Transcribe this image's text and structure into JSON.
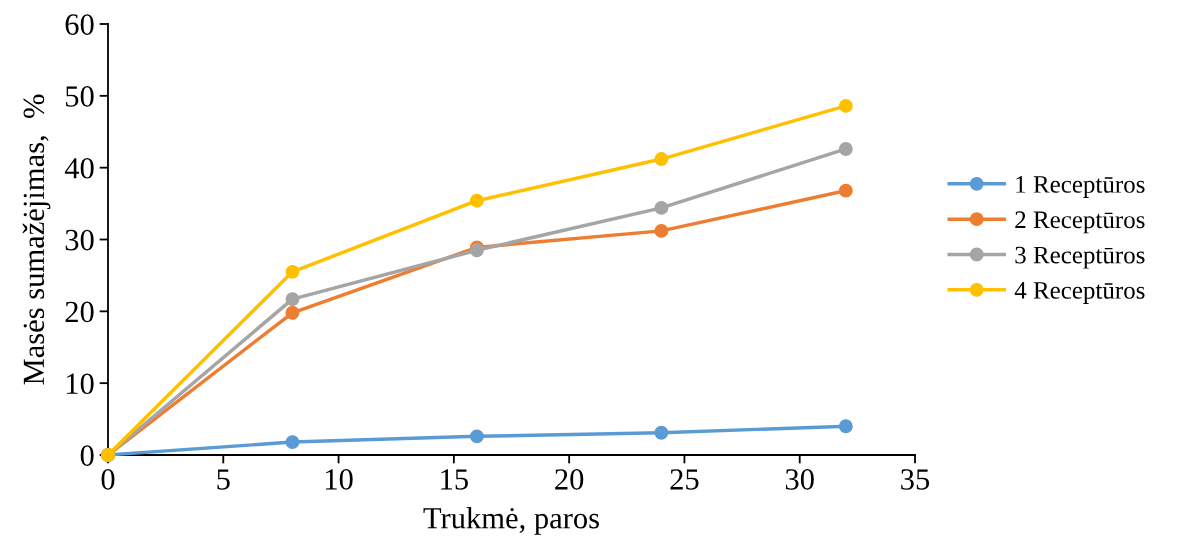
{
  "chart_data": {
    "type": "line",
    "xlabel": "Trukmė, paros",
    "ylabel": "Masės sumažėjimas,  %",
    "x": [
      0,
      8,
      16,
      24,
      32
    ],
    "series": [
      {
        "name": "1 Receptūros",
        "color": "#5b9bd5",
        "values": [
          0,
          1.8,
          2.6,
          3.1,
          4.0
        ]
      },
      {
        "name": "2 Receptūros",
        "color": "#ed7d31",
        "values": [
          0,
          19.8,
          28.9,
          31.2,
          36.8
        ]
      },
      {
        "name": "3 Receptūros",
        "color": "#a5a5a5",
        "values": [
          0,
          21.7,
          28.5,
          34.4,
          42.6
        ]
      },
      {
        "name": "4 Receptūros",
        "color": "#ffc000",
        "values": [
          0,
          25.5,
          35.4,
          41.2,
          48.6
        ]
      }
    ],
    "xlim": [
      0,
      35
    ],
    "xticks": [
      0,
      5,
      10,
      15,
      20,
      25,
      30,
      35
    ],
    "ylim": [
      0,
      60
    ],
    "yticks": [
      0,
      10,
      20,
      30,
      40,
      50,
      60
    ],
    "grid": false,
    "legend": "right",
    "marker": "circle",
    "line_style": "solid"
  }
}
